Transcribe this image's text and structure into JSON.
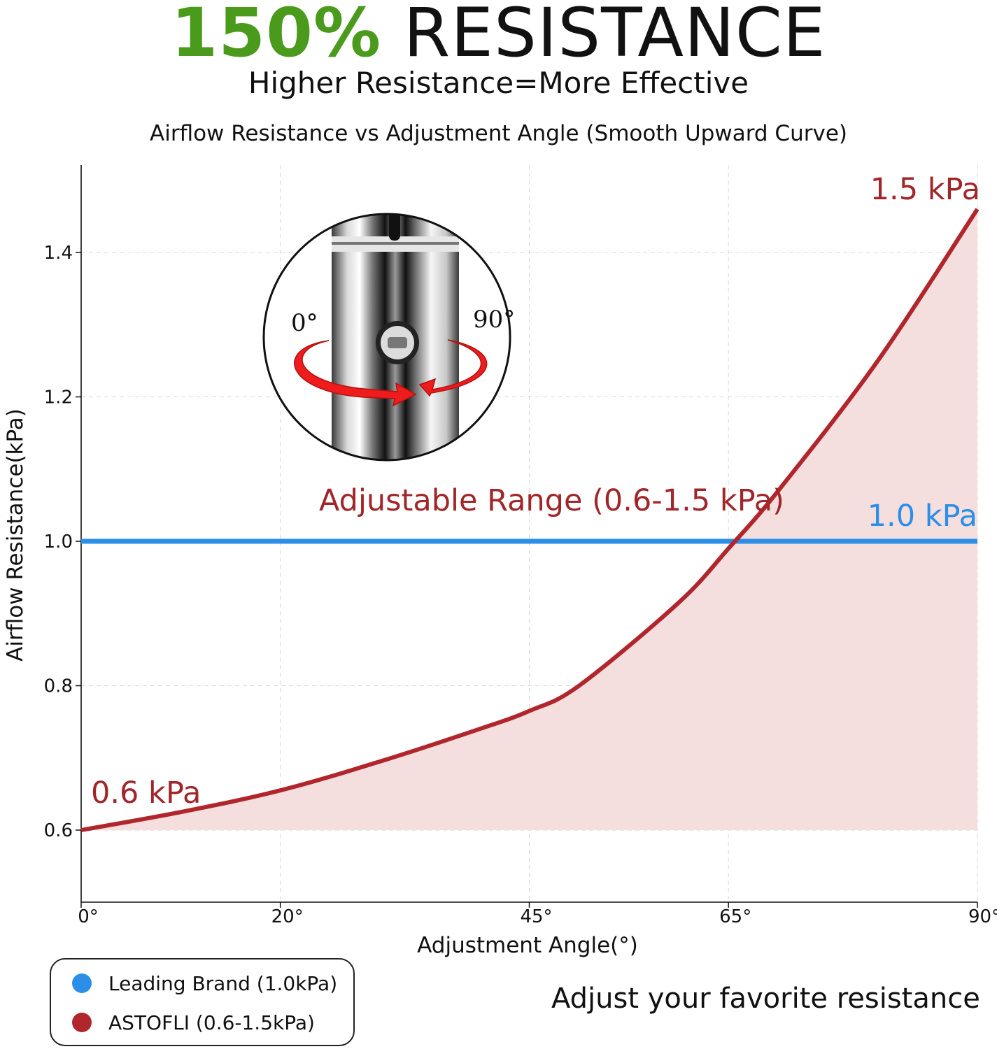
{
  "header": {
    "headline_percent": "150%",
    "headline_word": "RESISTANCE",
    "subheadline": "Higher Resistance=More Effective"
  },
  "colors": {
    "brand_green": "#4a9a1c",
    "astofli_red": "#b0262c",
    "leading_blue": "#2b8fe8",
    "fill_pink": "#f5dede"
  },
  "chart_data": {
    "type": "line",
    "title": "Airflow Resistance vs Adjustment Angle (Smooth Upward Curve)",
    "xlabel": "Adjustment Angle(°)",
    "ylabel": "Airflow Resistance(kPa)",
    "xlim": [
      0,
      90
    ],
    "ylim": [
      0.5,
      1.52
    ],
    "x_ticks": [
      {
        "value": 0,
        "label": "0°"
      },
      {
        "value": 20,
        "label": "20°"
      },
      {
        "value": 45,
        "label": "45°"
      },
      {
        "value": 65,
        "label": "65°"
      },
      {
        "value": 90,
        "label": "90°"
      }
    ],
    "y_ticks": [
      {
        "value": 0.6,
        "label": "0.6"
      },
      {
        "value": 0.8,
        "label": "0.8"
      },
      {
        "value": 1.0,
        "label": "1.0"
      },
      {
        "value": 1.2,
        "label": "1.2"
      },
      {
        "value": 1.4,
        "label": "1.4"
      }
    ],
    "grid": true,
    "series": [
      {
        "name": "ASTOFLI (0.6-1.5kPa)",
        "color": "#b0262c",
        "x": [
          0,
          10,
          20,
          30,
          40,
          45,
          50,
          60,
          65,
          70,
          80,
          90
        ],
        "y": [
          0.6,
          0.625,
          0.655,
          0.695,
          0.74,
          0.765,
          0.8,
          0.915,
          0.99,
          1.07,
          1.25,
          1.46
        ]
      },
      {
        "name": "Leading Brand (1.0kPa)",
        "color": "#2b8fe8",
        "x": [
          0,
          90
        ],
        "y": [
          1.0,
          1.0
        ]
      }
    ],
    "annotations": {
      "start": "0.6 kPa",
      "end": "1.5 kPa",
      "leading": "1.0 kPa",
      "range": "Adjustable Range (0.6-1.5 kPa)"
    },
    "legend_position": "bottom-left"
  },
  "inset": {
    "label_left": "0°",
    "label_right": "90°"
  },
  "legend": {
    "items": [
      {
        "label": "Leading Brand (1.0kPa)",
        "color": "#2b8fe8"
      },
      {
        "label": "ASTOFLI (0.6-1.5kPa)",
        "color": "#b0262c"
      }
    ]
  },
  "footer": {
    "tagline": "Adjust your favorite resistance"
  }
}
